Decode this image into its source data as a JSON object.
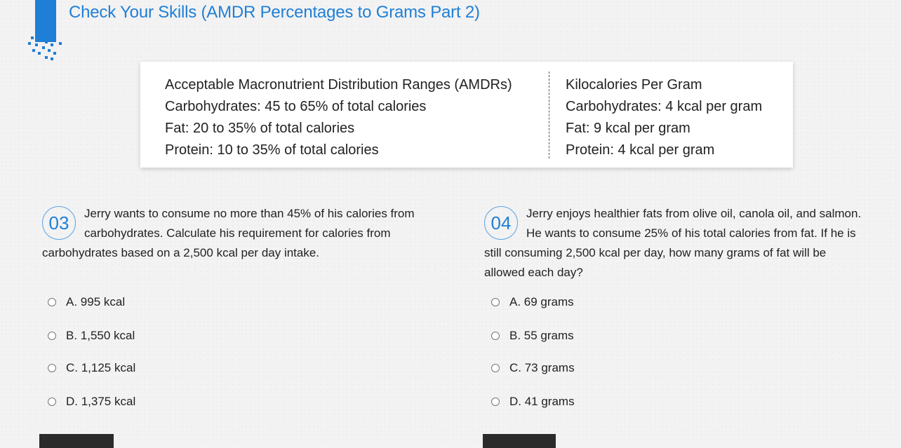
{
  "page": {
    "title": "Check Your Skills (AMDR Percentages to Grams Part 2)",
    "accent_color": "#1f7fd6",
    "logo_icon": "pixel-bar-logo"
  },
  "reference": {
    "left": {
      "heading": "Acceptable Macronutrient Distribution Ranges (AMDRs)",
      "lines": [
        "Carbohydrates: 45 to 65% of total calories",
        "Fat: 20 to 35% of total calories",
        "Protein: 10 to 35% of total calories"
      ]
    },
    "right": {
      "heading": "Kilocalories Per Gram",
      "lines": [
        "Carbohydrates: 4 kcal per gram",
        "Fat: 9 kcal per gram",
        "Protein: 4 kcal per gram"
      ]
    }
  },
  "questions": [
    {
      "number": "03",
      "text": "Jerry wants to consume no more than 45% of his calories from carbohydrates. Calculate his requirement for calories from carbohydrates based on a 2,500 kcal per day intake.",
      "choices": [
        "A. 995 kcal",
        "B. 1,550 kcal",
        "C. 1,125 kcal",
        "D. 1,375 kcal"
      ]
    },
    {
      "number": "04",
      "text": "Jerry enjoys healthier fats from olive oil, canola oil, and salmon. He wants to consume 25% of his total calories from fat. If he is still consuming 2,500 kcal per day, how many grams of fat will be allowed each day?",
      "choices": [
        "A. 69 grams",
        "B. 55 grams",
        "C. 73 grams",
        "D. 41 grams"
      ]
    }
  ]
}
